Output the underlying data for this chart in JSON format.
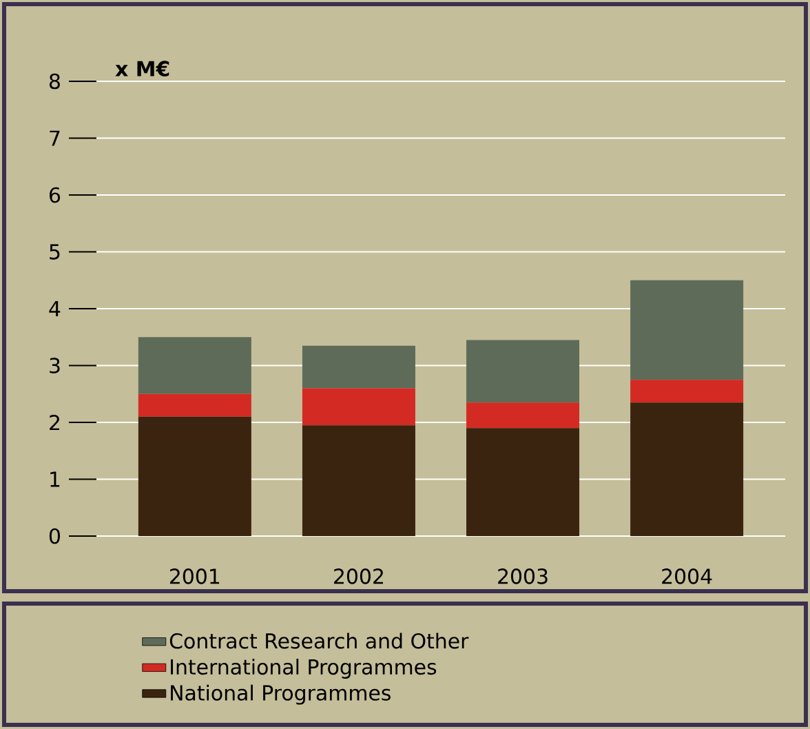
{
  "chart_data": {
    "type": "bar",
    "stacked": true,
    "ylabel": "x M€",
    "categories": [
      "2001",
      "2002",
      "2003",
      "2004"
    ],
    "series": [
      {
        "name": "National Programmes",
        "color": "#3a2410",
        "values": [
          2.1,
          1.95,
          1.9,
          2.35
        ]
      },
      {
        "name": "International Programmes",
        "color": "#d42a24",
        "values": [
          0.4,
          0.65,
          0.45,
          0.4
        ]
      },
      {
        "name": "Contract Research and Other",
        "color": "#5e6b58",
        "values": [
          1.0,
          0.75,
          1.1,
          1.75
        ]
      }
    ],
    "ylim": [
      0,
      8
    ],
    "yticks": [
      0,
      1,
      2,
      3,
      4,
      5,
      6,
      7,
      8
    ],
    "grid": "y",
    "legend": "bottom"
  }
}
